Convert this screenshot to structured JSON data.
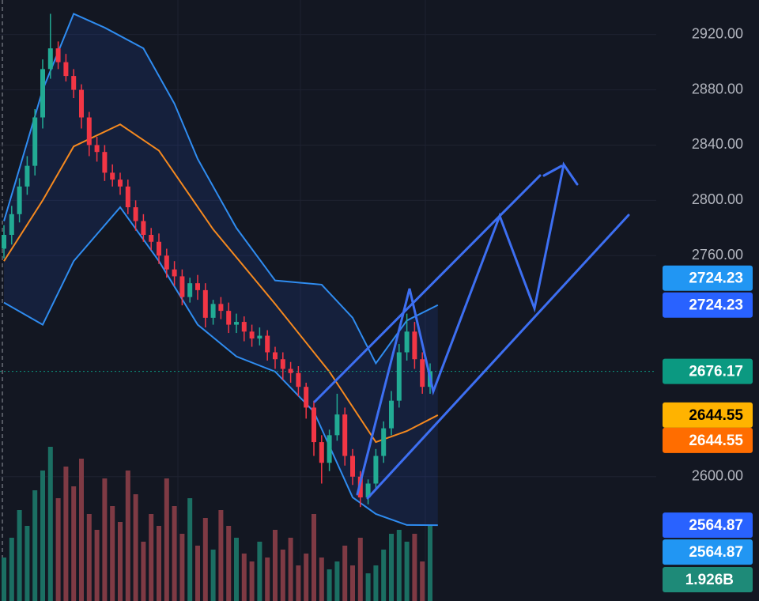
{
  "chart_data": {
    "type": "candlestick",
    "colors": {
      "up": "#22ab94",
      "down": "#f23645",
      "volume_up": "#1b6f63",
      "volume_down": "#7f3a44"
    },
    "ylim": [
      2510,
      2945
    ],
    "yticks": [
      {
        "value": 2600,
        "label": "2600.00"
      },
      {
        "value": 2760,
        "label": "2760.00"
      },
      {
        "value": 2800,
        "label": "2800.00"
      },
      {
        "value": 2840,
        "label": "2840.00"
      },
      {
        "value": 2880,
        "label": "2880.00"
      },
      {
        "value": 2920,
        "label": "2920.00"
      }
    ],
    "grid": true,
    "open": [
      2765,
      2775,
      2790,
      2810,
      2825,
      2860,
      2895,
      2910,
      2900,
      2890,
      2880,
      2860,
      2840,
      2835,
      2820,
      2815,
      2810,
      2795,
      2785,
      2775,
      2770,
      2760,
      2750,
      2745,
      2730,
      2740,
      2735,
      2715,
      2725,
      2720,
      2710,
      2712,
      2705,
      2700,
      2702,
      2690,
      2685,
      2678,
      2675,
      2665,
      2650,
      2625,
      2610,
      2630,
      2645,
      2615,
      2600,
      2585,
      2595,
      2615,
      2635,
      2655,
      2690,
      2705,
      2685,
      2665
    ],
    "high": [
      2782,
      2796,
      2816,
      2832,
      2866,
      2902,
      2935,
      2915,
      2906,
      2895,
      2884,
      2864,
      2846,
      2840,
      2826,
      2820,
      2815,
      2800,
      2790,
      2780,
      2776,
      2765,
      2756,
      2750,
      2744,
      2746,
      2740,
      2728,
      2730,
      2726,
      2718,
      2716,
      2710,
      2708,
      2706,
      2694,
      2690,
      2683,
      2680,
      2668,
      2655,
      2630,
      2634,
      2660,
      2650,
      2620,
      2604,
      2598,
      2620,
      2640,
      2662,
      2696,
      2718,
      2712,
      2690,
      2682
    ],
    "low": [
      2758,
      2768,
      2784,
      2804,
      2818,
      2852,
      2888,
      2895,
      2886,
      2874,
      2852,
      2832,
      2828,
      2814,
      2810,
      2804,
      2790,
      2778,
      2770,
      2764,
      2754,
      2744,
      2738,
      2724,
      2726,
      2728,
      2708,
      2710,
      2714,
      2704,
      2704,
      2698,
      2694,
      2695,
      2684,
      2678,
      2670,
      2668,
      2658,
      2642,
      2615,
      2595,
      2604,
      2626,
      2608,
      2594,
      2578,
      2580,
      2590,
      2610,
      2630,
      2650,
      2684,
      2678,
      2660,
      2660
    ],
    "close": [
      2775,
      2790,
      2810,
      2825,
      2860,
      2895,
      2910,
      2900,
      2890,
      2880,
      2860,
      2840,
      2835,
      2820,
      2815,
      2810,
      2795,
      2785,
      2775,
      2770,
      2760,
      2750,
      2745,
      2730,
      2740,
      2735,
      2715,
      2725,
      2720,
      2710,
      2712,
      2705,
      2700,
      2702,
      2690,
      2685,
      2678,
      2675,
      2665,
      2650,
      2625,
      2610,
      2630,
      2645,
      2615,
      2600,
      2585,
      2595,
      2615,
      2635,
      2655,
      2690,
      2705,
      2685,
      2665,
      2676.17
    ],
    "volume": [
      1100000000.0,
      1600000000.0,
      2300000000.0,
      1900000000.0,
      2800000000.0,
      3300000000.0,
      3900000000.0,
      2600000000.0,
      3400000000.0,
      2900000000.0,
      3600000000.0,
      2200000000.0,
      1800000000.0,
      3100000000.0,
      2400000000.0,
      2000000000.0,
      3300000000.0,
      2700000000.0,
      1500000000.0,
      2200000000.0,
      1900000000.0,
      3100000000.0,
      2400000000.0,
      1700000000.0,
      2600000000.0,
      1400000000.0,
      2100000000.0,
      1300000000.0,
      2300000000.0,
      1900000000.0,
      1600000000.0,
      1200000000.0,
      1000000000.0,
      1500000000.0,
      1100000000.0,
      1800000000.0,
      1300000000.0,
      1600000000.0,
      900000000.0,
      1200000000.0,
      2200000000.0,
      1100000000.0,
      800000000.0,
      1000000000.0,
      1400000000.0,
      900000000.0,
      1600000000.0,
      700000000.0,
      900000000.0,
      1300000000.0,
      1700000000.0,
      1800000000.0,
      1500000000.0,
      1700000000.0,
      1000000000.0,
      1926000000.0
    ],
    "bands": [
      {
        "name": "upper",
        "color": "#2f8cf0",
        "x": [
          0,
          5,
          9,
          13,
          18,
          22,
          25,
          30,
          35,
          41,
          45,
          48,
          52,
          56
        ],
        "values": [
          2785,
          2880,
          2935,
          2925,
          2910,
          2870,
          2830,
          2780,
          2742,
          2739,
          2715,
          2682,
          2713,
          2724.23
        ]
      },
      {
        "name": "basis",
        "color": "#f5891f",
        "x": [
          0,
          5,
          9,
          15,
          20,
          27,
          35,
          42,
          48,
          52,
          56
        ],
        "values": [
          2756,
          2800,
          2839,
          2855,
          2836,
          2779,
          2725,
          2676,
          2625,
          2633,
          2644.55
        ]
      },
      {
        "name": "lower",
        "color": "#2f8cf0",
        "x": [
          0,
          5,
          9,
          15,
          20,
          25,
          30,
          35,
          40,
          45,
          48,
          52,
          56
        ],
        "values": [
          2726,
          2710,
          2756,
          2795,
          2756,
          2710,
          2687,
          2676,
          2647,
          2585,
          2573,
          2565,
          2564.87
        ]
      }
    ],
    "price_labels": [
      {
        "value": 2724.23,
        "color": "#2196f3",
        "text_color": "#ffffff"
      },
      {
        "value": 2724.23,
        "color": "#2962ff",
        "text_color": "#ffffff"
      },
      {
        "value": 2676.17,
        "color": "#0b9981",
        "text_color": "#ffffff"
      },
      {
        "value": 2644.55,
        "color": "#ffb300",
        "text_color": "#000000"
      },
      {
        "value": 2644.55,
        "color": "#ff6d00",
        "text_color": "#ffffff"
      },
      {
        "value": 2564.87,
        "color": "#2962ff",
        "text_color": "#ffffff"
      },
      {
        "value": 2564.87,
        "color": "#2196f3",
        "text_color": "#ffffff"
      }
    ],
    "volume_label": {
      "value": 1926000000,
      "label": "1.926B",
      "color": "#1e8a78",
      "text_color": "#ffffff"
    }
  }
}
